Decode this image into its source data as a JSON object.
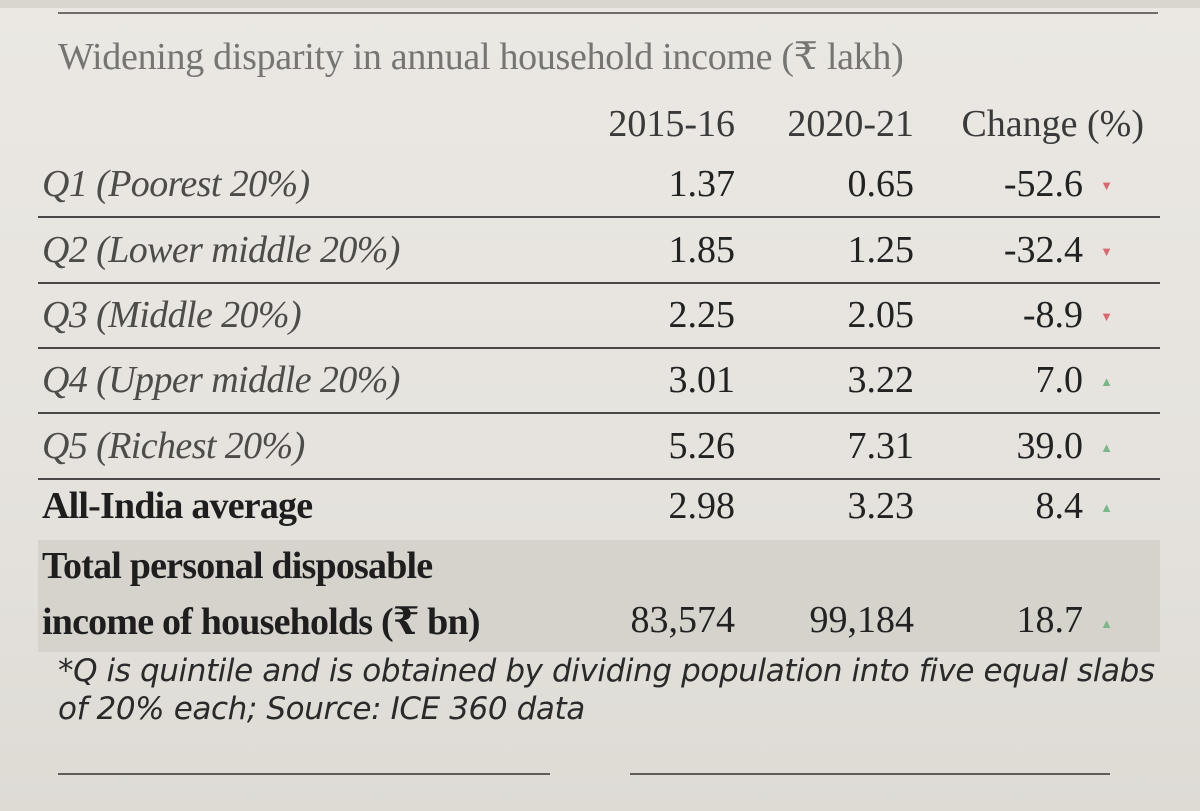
{
  "chart_data": {
    "type": "table",
    "title": "Widening disparity in annual household income",
    "unit": "(₹ lakh)",
    "columns": [
      "2015-16",
      "2020-21",
      "Change (%)"
    ],
    "rows": [
      {
        "label": "Q1 (Poorest 20%)",
        "v2015": "1.37",
        "v2020": "0.65",
        "change": "-52.6",
        "trend": "down"
      },
      {
        "label": "Q2 (Lower middle 20%)",
        "v2015": "1.85",
        "v2020": "1.25",
        "change": "-32.4",
        "trend": "down"
      },
      {
        "label": "Q3 (Middle 20%)",
        "v2015": "2.25",
        "v2020": "2.05",
        "change": "-8.9",
        "trend": "down"
      },
      {
        "label": "Q4 (Upper middle 20%)",
        "v2015": "3.01",
        "v2020": "3.22",
        "change": "7.0",
        "trend": "up"
      },
      {
        "label": "Q5 (Richest 20%)",
        "v2015": "5.26",
        "v2020": "7.31",
        "change": "39.0",
        "trend": "up"
      },
      {
        "label": "All-India average",
        "v2015": "2.98",
        "v2020": "3.23",
        "change": "8.4",
        "trend": "up"
      }
    ],
    "total": {
      "label_line1": "Total personal disposable",
      "label_line2": "income of households (₹ bn)",
      "v2015": "83,574",
      "v2020": "99,184",
      "change": "18.7",
      "trend": "up"
    },
    "note": "*Q is quintile and is obtained by dividing population into five equal slabs of 20% each; Source: ICE 360 data"
  },
  "icons": {
    "down": "triangle-down-icon",
    "up": "triangle-up-icon"
  },
  "colors": {
    "down": "#d66a73",
    "up": "#7bb58a"
  }
}
